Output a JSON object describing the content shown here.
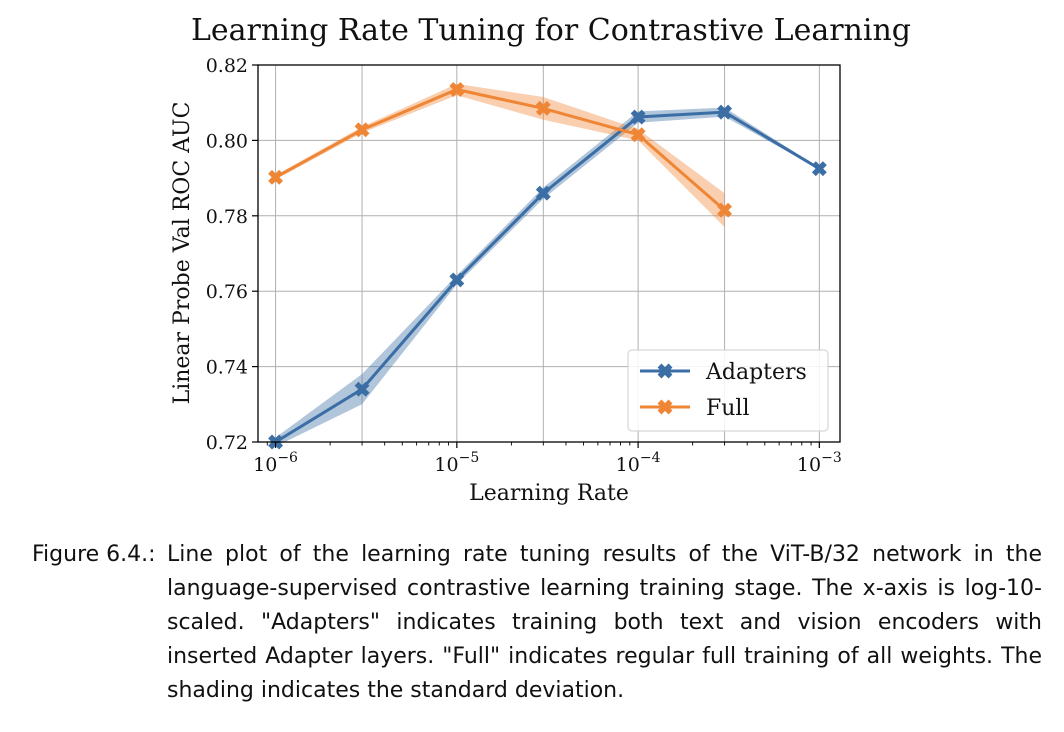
{
  "chart_data": {
    "type": "line",
    "title": "Learning Rate Tuning for Contrastive Learning",
    "xlabel": "Learning Rate",
    "ylabel": "Linear Probe Val ROC AUC",
    "xscale": "log10",
    "xlim": [
      8e-07,
      0.0013
    ],
    "ylim": [
      0.72,
      0.82
    ],
    "grid": true,
    "legend_position": "lower-right",
    "yticks": [
      0.72,
      0.74,
      0.76,
      0.78,
      0.8,
      0.82
    ],
    "ytick_labels": [
      "0.72",
      "0.74",
      "0.76",
      "0.78",
      "0.80",
      "0.82"
    ],
    "xticks": [
      {
        "value": 1e-06,
        "base": "10",
        "exp": "−6"
      },
      {
        "value": 1e-05,
        "base": "10",
        "exp": "−5"
      },
      {
        "value": 0.0001,
        "base": "10",
        "exp": "−4"
      },
      {
        "value": 0.001,
        "base": "10",
        "exp": "−3"
      }
    ],
    "series": [
      {
        "name": "Adapters",
        "color": "#3b6ea5",
        "x": [
          1e-06,
          3e-06,
          1e-05,
          3e-05,
          0.0001,
          0.0003,
          0.001
        ],
        "values": [
          0.72,
          0.734,
          0.763,
          0.786,
          0.8062,
          0.8075,
          0.7925
        ],
        "std": [
          0.0012,
          0.004,
          0.0012,
          0.0015,
          0.0015,
          0.0012,
          0.0002
        ]
      },
      {
        "name": "Full",
        "color": "#ef8636",
        "x": [
          1e-06,
          3e-06,
          1e-05,
          3e-05,
          0.0001,
          0.0003
        ],
        "values": [
          0.7902,
          0.8028,
          0.8135,
          0.8085,
          0.8015,
          0.7815
        ],
        "std": [
          0.0006,
          0.0008,
          0.0015,
          0.003,
          0.0015,
          0.0045
        ]
      }
    ]
  },
  "caption": {
    "label": "Figure 6.4.:",
    "text": "Line plot of the learning rate tuning results of the ViT-B/32 network in the language-supervised contrastive learning training stage. The x-axis is log-10-scaled. \"Adapters\" indicates training both text and vision encoders with inserted Adapter layers. \"Full\" indicates regular full training of all weights. The shading indicates the standard deviation."
  }
}
